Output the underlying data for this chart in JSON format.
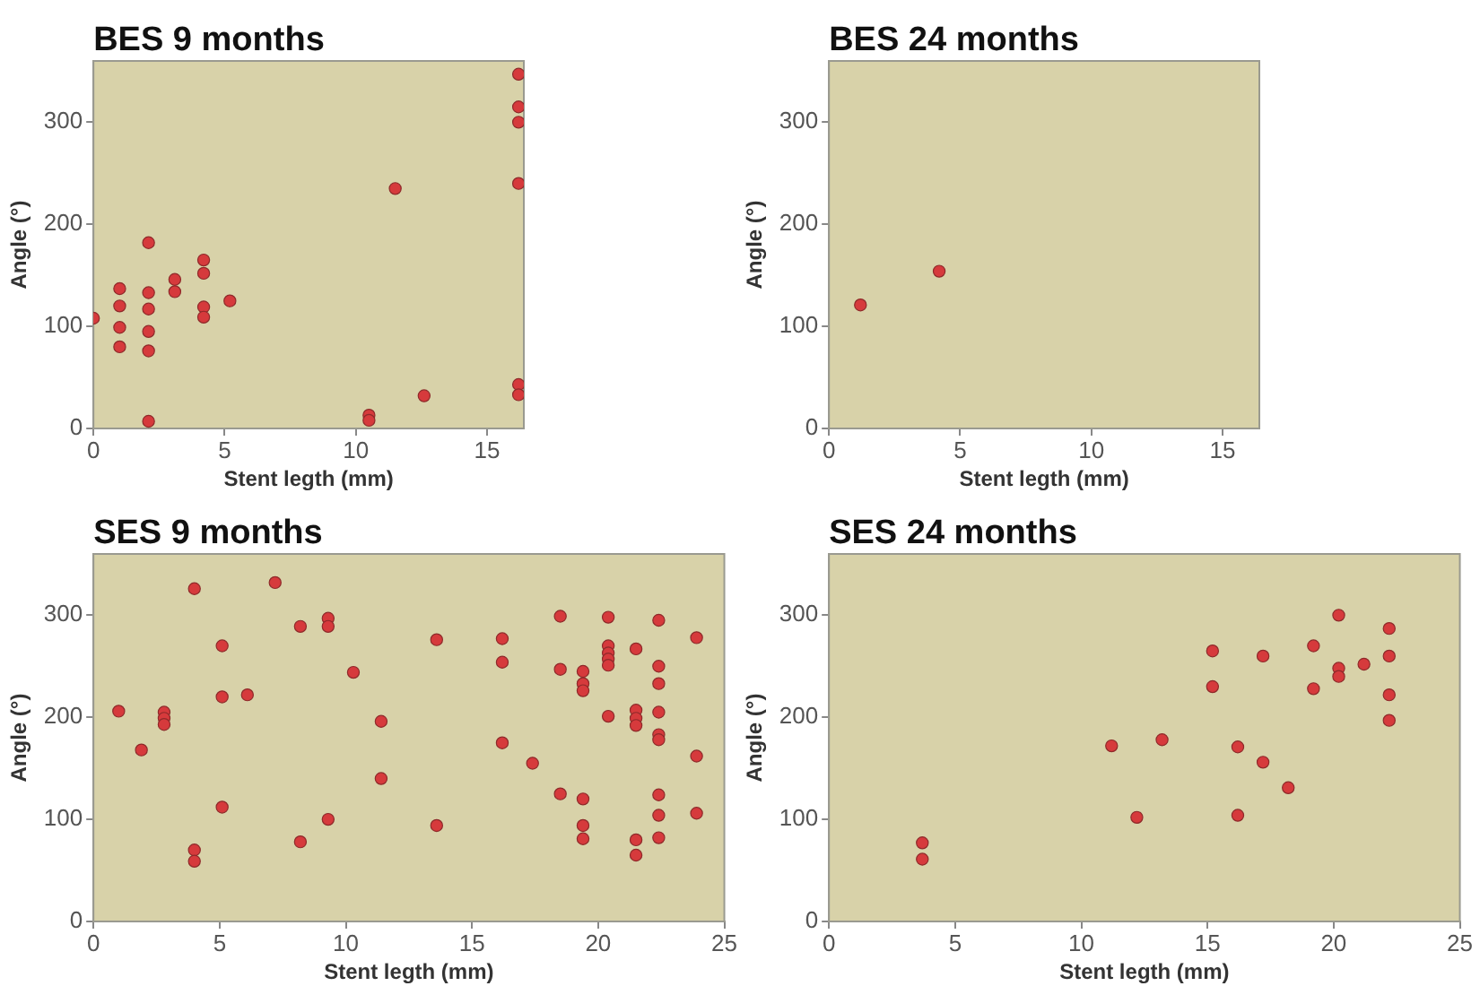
{
  "chart_data": [
    {
      "type": "scatter",
      "title": "BES 9 months",
      "xlabel": "Stent legth (mm)",
      "ylabel": "Angle (°)",
      "color": "#d63a3c",
      "marker": "circle",
      "xlim": [
        0,
        16.4
      ],
      "ylim": [
        0,
        360
      ],
      "xticks": [
        0,
        5,
        10,
        15
      ],
      "yticks": [
        0,
        100,
        200,
        300
      ],
      "x": [
        0,
        1,
        1,
        1,
        1,
        2.1,
        2.1,
        2.1,
        2.1,
        2.1,
        2.1,
        3.1,
        3.1,
        4.2,
        4.2,
        4.2,
        4.2,
        5.2,
        10.5,
        10.5,
        11.5,
        12.6,
        16.2,
        16.2,
        16.2,
        16.2,
        16.2,
        16.2
      ],
      "values": [
        108,
        137,
        120,
        99,
        80,
        182,
        133,
        117,
        95,
        76,
        7,
        146,
        134,
        165,
        152,
        119,
        109,
        125,
        13,
        8,
        235,
        32,
        347,
        315,
        300,
        240,
        43,
        33
      ]
    },
    {
      "type": "scatter",
      "title": "BES 24 months",
      "xlabel": "Stent legth (mm)",
      "ylabel": "Angle (°)",
      "color": "#d63a3c",
      "marker": "circle",
      "xlim": [
        0,
        16.4
      ],
      "ylim": [
        0,
        360
      ],
      "xticks": [
        0,
        5,
        10,
        15
      ],
      "yticks": [
        0,
        100,
        200,
        300
      ],
      "x": [
        1.2,
        4.2
      ],
      "values": [
        121,
        154
      ]
    },
    {
      "type": "scatter",
      "title": "SES 9 months",
      "xlabel": "Stent legth (mm)",
      "ylabel": "Angle (°)",
      "color": "#d63a3c",
      "marker": "circle",
      "xlim": [
        0,
        25
      ],
      "ylim": [
        0,
        360
      ],
      "xticks": [
        0,
        5,
        10,
        15,
        20,
        25
      ],
      "yticks": [
        0,
        100,
        200,
        300
      ],
      "x": [
        1,
        1.9,
        2.8,
        2.8,
        2.8,
        4,
        4,
        4,
        5.1,
        5.1,
        5.1,
        6.1,
        7.2,
        8.2,
        8.2,
        9.3,
        9.3,
        9.3,
        10.3,
        11.4,
        11.4,
        13.6,
        13.6,
        16.2,
        16.2,
        16.2,
        17.4,
        18.5,
        18.5,
        18.5,
        19.4,
        19.4,
        19.4,
        19.4,
        19.4,
        19.4,
        20.4,
        20.4,
        20.4,
        20.4,
        20.4,
        20.4,
        21.5,
        21.5,
        21.5,
        21.5,
        21.5,
        21.5,
        22.4,
        22.4,
        22.4,
        22.4,
        22.4,
        22.4,
        22.4,
        22.4,
        22.4,
        23.9,
        23.9,
        23.9
      ],
      "values": [
        206,
        168,
        205,
        199,
        193,
        326,
        70,
        59,
        270,
        220,
        112,
        222,
        332,
        289,
        78,
        297,
        289,
        100,
        244,
        196,
        140,
        276,
        94,
        277,
        254,
        175,
        155,
        299,
        247,
        125,
        245,
        233,
        226,
        120,
        94,
        81,
        298,
        270,
        263,
        257,
        251,
        201,
        267,
        207,
        199,
        192,
        80,
        65,
        295,
        250,
        233,
        205,
        183,
        178,
        124,
        104,
        82,
        278,
        162,
        106
      ]
    },
    {
      "type": "scatter",
      "title": "SES 24 months",
      "xlabel": "Stent legth (mm)",
      "ylabel": "Angle (°)",
      "color": "#d63a3c",
      "marker": "circle",
      "xlim": [
        0,
        25
      ],
      "ylim": [
        0,
        360
      ],
      "xticks": [
        0,
        5,
        10,
        15,
        20,
        25
      ],
      "yticks": [
        0,
        100,
        200,
        300
      ],
      "x": [
        3.7,
        3.7,
        11.2,
        12.2,
        13.2,
        15.2,
        15.2,
        16.2,
        16.2,
        17.2,
        17.2,
        18.2,
        19.2,
        19.2,
        20.2,
        20.2,
        20.2,
        21.2,
        22.2,
        22.2,
        22.2,
        22.2
      ],
      "values": [
        77,
        61,
        172,
        102,
        178,
        265,
        230,
        171,
        104,
        260,
        156,
        131,
        270,
        228,
        300,
        248,
        240,
        252,
        287,
        260,
        222,
        197
      ]
    }
  ]
}
